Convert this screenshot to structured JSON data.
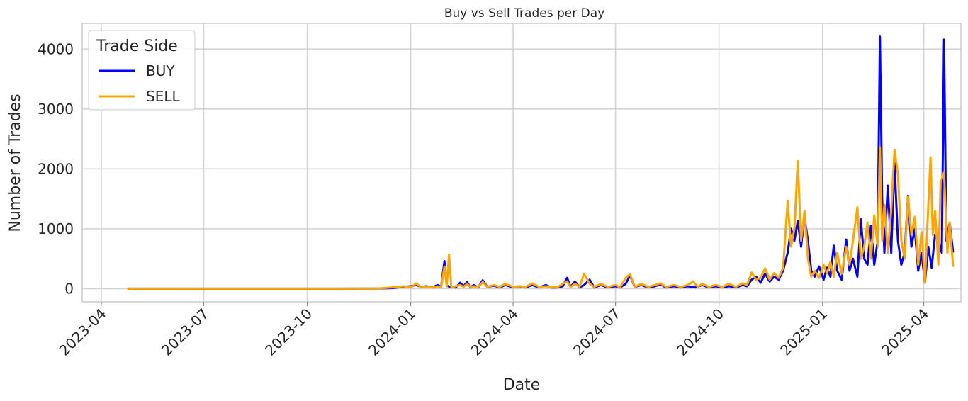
{
  "chart_data": {
    "type": "line",
    "title": "Buy vs Sell Trades per Day",
    "xlabel": "Date",
    "ylabel": "Number of Trades",
    "xlim": [
      "2023-03-15",
      "2025-05-04"
    ],
    "ylim": [
      -220,
      4430
    ],
    "y_ticks": [
      0,
      1000,
      2000,
      3000,
      4000
    ],
    "x_ticks": [
      "2023-04",
      "2023-07",
      "2023-10",
      "2024-01",
      "2024-04",
      "2024-07",
      "2024-10",
      "2025-01",
      "2025-04"
    ],
    "grid": true,
    "legend": {
      "title": "Trade Side",
      "placement": "top-left"
    },
    "series": [
      {
        "name": "BUY",
        "color": "#0000ff",
        "points": [
          [
            "2023-04-25",
            0
          ],
          [
            "2023-06-01",
            0
          ],
          [
            "2023-07-01",
            0
          ],
          [
            "2023-08-01",
            0
          ],
          [
            "2023-09-01",
            0
          ],
          [
            "2023-10-01",
            0
          ],
          [
            "2023-11-01",
            0
          ],
          [
            "2023-12-01",
            2
          ],
          [
            "2023-12-15",
            10
          ],
          [
            "2023-12-25",
            30
          ],
          [
            "2024-01-01",
            40
          ],
          [
            "2024-01-06",
            60
          ],
          [
            "2024-01-10",
            30
          ],
          [
            "2024-01-15",
            40
          ],
          [
            "2024-01-20",
            20
          ],
          [
            "2024-01-25",
            60
          ],
          [
            "2024-01-28",
            30
          ],
          [
            "2024-01-31",
            460
          ],
          [
            "2024-02-02",
            50
          ],
          [
            "2024-02-05",
            30
          ],
          [
            "2024-02-10",
            20
          ],
          [
            "2024-02-14",
            100
          ],
          [
            "2024-02-17",
            40
          ],
          [
            "2024-02-20",
            110
          ],
          [
            "2024-02-23",
            20
          ],
          [
            "2024-02-26",
            60
          ],
          [
            "2024-03-01",
            20
          ],
          [
            "2024-03-05",
            140
          ],
          [
            "2024-03-09",
            30
          ],
          [
            "2024-03-15",
            50
          ],
          [
            "2024-03-20",
            20
          ],
          [
            "2024-03-25",
            60
          ],
          [
            "2024-04-01",
            20
          ],
          [
            "2024-04-06",
            40
          ],
          [
            "2024-04-12",
            20
          ],
          [
            "2024-04-18",
            60
          ],
          [
            "2024-04-24",
            20
          ],
          [
            "2024-04-30",
            60
          ],
          [
            "2024-05-05",
            20
          ],
          [
            "2024-05-10",
            20
          ],
          [
            "2024-05-15",
            40
          ],
          [
            "2024-05-19",
            180
          ],
          [
            "2024-05-22",
            30
          ],
          [
            "2024-05-26",
            120
          ],
          [
            "2024-05-30",
            20
          ],
          [
            "2024-06-03",
            60
          ],
          [
            "2024-06-08",
            150
          ],
          [
            "2024-06-12",
            20
          ],
          [
            "2024-06-18",
            60
          ],
          [
            "2024-06-24",
            20
          ],
          [
            "2024-07-01",
            40
          ],
          [
            "2024-07-05",
            20
          ],
          [
            "2024-07-10",
            80
          ],
          [
            "2024-07-14",
            220
          ],
          [
            "2024-07-18",
            30
          ],
          [
            "2024-07-24",
            60
          ],
          [
            "2024-07-30",
            20
          ],
          [
            "2024-08-05",
            40
          ],
          [
            "2024-08-10",
            70
          ],
          [
            "2024-08-15",
            20
          ],
          [
            "2024-08-22",
            40
          ],
          [
            "2024-08-28",
            20
          ],
          [
            "2024-09-03",
            40
          ],
          [
            "2024-09-10",
            20
          ],
          [
            "2024-09-16",
            60
          ],
          [
            "2024-09-22",
            20
          ],
          [
            "2024-09-28",
            40
          ],
          [
            "2024-10-04",
            20
          ],
          [
            "2024-10-10",
            40
          ],
          [
            "2024-10-16",
            20
          ],
          [
            "2024-10-22",
            60
          ],
          [
            "2024-10-26",
            40
          ],
          [
            "2024-10-30",
            150
          ],
          [
            "2024-11-03",
            200
          ],
          [
            "2024-11-07",
            100
          ],
          [
            "2024-11-11",
            250
          ],
          [
            "2024-11-15",
            120
          ],
          [
            "2024-11-19",
            200
          ],
          [
            "2024-11-23",
            150
          ],
          [
            "2024-11-27",
            300
          ],
          [
            "2024-12-01",
            600
          ],
          [
            "2024-12-04",
            1000
          ],
          [
            "2024-12-07",
            800
          ],
          [
            "2024-12-10",
            1130
          ],
          [
            "2024-12-13",
            700
          ],
          [
            "2024-12-16",
            1200
          ],
          [
            "2024-12-19",
            800
          ],
          [
            "2024-12-22",
            300
          ],
          [
            "2024-12-25",
            200
          ],
          [
            "2024-12-29",
            370
          ],
          [
            "2025-01-02",
            150
          ],
          [
            "2025-01-05",
            350
          ],
          [
            "2025-01-08",
            200
          ],
          [
            "2025-01-11",
            720
          ],
          [
            "2025-01-14",
            300
          ],
          [
            "2025-01-18",
            150
          ],
          [
            "2025-01-22",
            820
          ],
          [
            "2025-01-25",
            300
          ],
          [
            "2025-01-28",
            500
          ],
          [
            "2025-02-01",
            200
          ],
          [
            "2025-02-04",
            1160
          ],
          [
            "2025-02-07",
            500
          ],
          [
            "2025-02-10",
            400
          ],
          [
            "2025-02-13",
            1050
          ],
          [
            "2025-02-16",
            400
          ],
          [
            "2025-02-19",
            800
          ],
          [
            "2025-02-21",
            4210
          ],
          [
            "2025-02-23",
            1500
          ],
          [
            "2025-02-25",
            600
          ],
          [
            "2025-02-28",
            1720
          ],
          [
            "2025-03-03",
            600
          ],
          [
            "2025-03-06",
            2100
          ],
          [
            "2025-03-09",
            800
          ],
          [
            "2025-03-12",
            400
          ],
          [
            "2025-03-15",
            600
          ],
          [
            "2025-03-18",
            1550
          ],
          [
            "2025-03-21",
            700
          ],
          [
            "2025-03-24",
            1000
          ],
          [
            "2025-03-27",
            300
          ],
          [
            "2025-03-30",
            600
          ],
          [
            "2025-04-02",
            100
          ],
          [
            "2025-04-05",
            700
          ],
          [
            "2025-04-08",
            350
          ],
          [
            "2025-04-11",
            900
          ],
          [
            "2025-04-14",
            800
          ],
          [
            "2025-04-17",
            600
          ],
          [
            "2025-04-19",
            4160
          ],
          [
            "2025-04-21",
            800
          ],
          [
            "2025-04-24",
            1100
          ],
          [
            "2025-04-27",
            620
          ]
        ]
      },
      {
        "name": "SELL",
        "color": "#ffa500",
        "points": [
          [
            "2023-04-25",
            0
          ],
          [
            "2023-06-01",
            0
          ],
          [
            "2023-07-01",
            0
          ],
          [
            "2023-08-01",
            0
          ],
          [
            "2023-09-01",
            0
          ],
          [
            "2023-10-01",
            0
          ],
          [
            "2023-11-01",
            0
          ],
          [
            "2023-12-01",
            2
          ],
          [
            "2023-12-15",
            20
          ],
          [
            "2023-12-25",
            40
          ],
          [
            "2024-01-01",
            20
          ],
          [
            "2024-01-06",
            90
          ],
          [
            "2024-01-10",
            20
          ],
          [
            "2024-01-15",
            30
          ],
          [
            "2024-01-20",
            20
          ],
          [
            "2024-01-25",
            40
          ],
          [
            "2024-01-28",
            20
          ],
          [
            "2024-01-31",
            370
          ],
          [
            "2024-02-02",
            40
          ],
          [
            "2024-02-04",
            570
          ],
          [
            "2024-02-06",
            30
          ],
          [
            "2024-02-10",
            40
          ],
          [
            "2024-02-14",
            60
          ],
          [
            "2024-02-17",
            30
          ],
          [
            "2024-02-20",
            80
          ],
          [
            "2024-02-23",
            30
          ],
          [
            "2024-02-26",
            40
          ],
          [
            "2024-03-01",
            30
          ],
          [
            "2024-03-05",
            110
          ],
          [
            "2024-03-09",
            30
          ],
          [
            "2024-03-15",
            60
          ],
          [
            "2024-03-20",
            30
          ],
          [
            "2024-03-25",
            80
          ],
          [
            "2024-04-01",
            30
          ],
          [
            "2024-04-06",
            40
          ],
          [
            "2024-04-12",
            30
          ],
          [
            "2024-04-18",
            90
          ],
          [
            "2024-04-24",
            30
          ],
          [
            "2024-04-30",
            40
          ],
          [
            "2024-05-05",
            30
          ],
          [
            "2024-05-10",
            20
          ],
          [
            "2024-05-15",
            80
          ],
          [
            "2024-05-19",
            120
          ],
          [
            "2024-05-22",
            30
          ],
          [
            "2024-05-26",
            80
          ],
          [
            "2024-05-30",
            30
          ],
          [
            "2024-06-03",
            250
          ],
          [
            "2024-06-08",
            80
          ],
          [
            "2024-06-12",
            30
          ],
          [
            "2024-06-18",
            80
          ],
          [
            "2024-06-24",
            30
          ],
          [
            "2024-07-01",
            60
          ],
          [
            "2024-07-05",
            20
          ],
          [
            "2024-07-10",
            180
          ],
          [
            "2024-07-14",
            240
          ],
          [
            "2024-07-18",
            30
          ],
          [
            "2024-07-24",
            80
          ],
          [
            "2024-07-30",
            30
          ],
          [
            "2024-08-05",
            60
          ],
          [
            "2024-08-10",
            90
          ],
          [
            "2024-08-15",
            30
          ],
          [
            "2024-08-22",
            60
          ],
          [
            "2024-08-28",
            30
          ],
          [
            "2024-09-03",
            60
          ],
          [
            "2024-09-08",
            120
          ],
          [
            "2024-09-12",
            30
          ],
          [
            "2024-09-16",
            80
          ],
          [
            "2024-09-22",
            30
          ],
          [
            "2024-09-28",
            60
          ],
          [
            "2024-10-04",
            30
          ],
          [
            "2024-10-10",
            80
          ],
          [
            "2024-10-16",
            30
          ],
          [
            "2024-10-22",
            90
          ],
          [
            "2024-10-26",
            60
          ],
          [
            "2024-10-30",
            270
          ],
          [
            "2024-11-03",
            150
          ],
          [
            "2024-11-07",
            180
          ],
          [
            "2024-11-11",
            340
          ],
          [
            "2024-11-15",
            150
          ],
          [
            "2024-11-19",
            260
          ],
          [
            "2024-11-23",
            180
          ],
          [
            "2024-11-27",
            350
          ],
          [
            "2024-12-01",
            1460
          ],
          [
            "2024-12-04",
            700
          ],
          [
            "2024-12-07",
            1000
          ],
          [
            "2024-12-10",
            2130
          ],
          [
            "2024-12-13",
            800
          ],
          [
            "2024-12-16",
            1300
          ],
          [
            "2024-12-19",
            500
          ],
          [
            "2024-12-22",
            200
          ],
          [
            "2024-12-25",
            300
          ],
          [
            "2024-12-29",
            180
          ],
          [
            "2025-01-02",
            400
          ],
          [
            "2025-01-05",
            250
          ],
          [
            "2025-01-08",
            450
          ],
          [
            "2025-01-11",
            200
          ],
          [
            "2025-01-14",
            600
          ],
          [
            "2025-01-18",
            250
          ],
          [
            "2025-01-22",
            700
          ],
          [
            "2025-01-25",
            400
          ],
          [
            "2025-01-28",
            800
          ],
          [
            "2025-02-01",
            1360
          ],
          [
            "2025-02-04",
            500
          ],
          [
            "2025-02-07",
            700
          ],
          [
            "2025-02-10",
            1100
          ],
          [
            "2025-02-13",
            500
          ],
          [
            "2025-02-16",
            1220
          ],
          [
            "2025-02-19",
            700
          ],
          [
            "2025-02-21",
            2360
          ],
          [
            "2025-02-23",
            800
          ],
          [
            "2025-02-25",
            1400
          ],
          [
            "2025-02-28",
            600
          ],
          [
            "2025-03-03",
            1300
          ],
          [
            "2025-03-06",
            2320
          ],
          [
            "2025-03-09",
            1900
          ],
          [
            "2025-03-12",
            800
          ],
          [
            "2025-03-15",
            500
          ],
          [
            "2025-03-18",
            1540
          ],
          [
            "2025-03-21",
            900
          ],
          [
            "2025-03-24",
            1200
          ],
          [
            "2025-03-27",
            400
          ],
          [
            "2025-03-30",
            950
          ],
          [
            "2025-04-02",
            100
          ],
          [
            "2025-04-05",
            1400
          ],
          [
            "2025-04-07",
            2190
          ],
          [
            "2025-04-09",
            900
          ],
          [
            "2025-04-11",
            1300
          ],
          [
            "2025-04-14",
            400
          ],
          [
            "2025-04-16",
            1780
          ],
          [
            "2025-04-19",
            1940
          ],
          [
            "2025-04-22",
            600
          ],
          [
            "2025-04-24",
            1100
          ],
          [
            "2025-04-27",
            380
          ]
        ]
      }
    ]
  }
}
